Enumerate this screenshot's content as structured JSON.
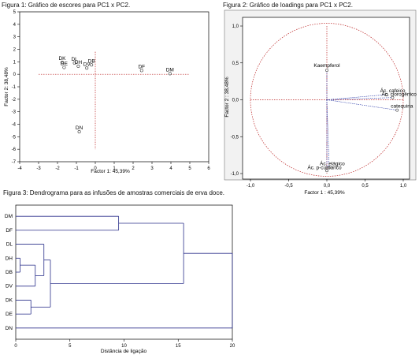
{
  "fig1": {
    "caption": "Figura 1: Gráfico de escores para PC1 x PC2.",
    "chart_data": {
      "type": "scatter",
      "xlabel": "Factor 1: 45,39%",
      "ylabel": "Factor 2: 38,48%",
      "xlim": [
        -4,
        6
      ],
      "ylim": [
        -7,
        5
      ],
      "xticks": [
        "-4",
        "-3",
        "-2",
        "-1",
        "0",
        "1",
        "2",
        "3",
        "4",
        "5",
        "6"
      ],
      "yticks": [
        "5",
        "4",
        "3",
        "2",
        "1",
        "0",
        "-1",
        "-2",
        "-3",
        "-4",
        "-5",
        "-6",
        "-7"
      ],
      "points": [
        {
          "label": "DK",
          "x": -1.75,
          "y": 0.95
        },
        {
          "label": "DE",
          "x": -1.65,
          "y": 0.55
        },
        {
          "label": "DL",
          "x": -1.1,
          "y": 0.9
        },
        {
          "label": "DH",
          "x": -0.9,
          "y": 0.65
        },
        {
          "label": "DV",
          "x": -0.45,
          "y": 0.5
        },
        {
          "label": "DB",
          "x": -0.2,
          "y": 0.75
        },
        {
          "label": "DF",
          "x": 2.45,
          "y": 0.3
        },
        {
          "label": "DM",
          "x": 3.95,
          "y": 0.05
        },
        {
          "label": "DN",
          "x": -0.85,
          "y": -4.6
        }
      ]
    }
  },
  "fig2": {
    "caption": "Figura 2: Gráfico de loadings para PC1 x PC2.",
    "chart_data": {
      "type": "scatter",
      "xlabel": "Factor 1 : 45,39%",
      "ylabel": "Factor 2 : 38,48%",
      "xlim": [
        -1.0,
        1.0
      ],
      "ylim": [
        -1.0,
        1.0
      ],
      "xticks": [
        "-1,0",
        "-0,5",
        "0,0",
        "0,5",
        "1,0"
      ],
      "yticks": [
        "1,0",
        "0,5",
        "0,0",
        "-0,5",
        "-1,0"
      ],
      "circle": true,
      "points": [
        {
          "label": "Kaempferol",
          "x": 0.0,
          "y": 0.4
        },
        {
          "label": "Ác. cafeico",
          "x": 0.78,
          "y": 0.07
        },
        {
          "label": "Ác. clorogênico",
          "x": 0.86,
          "y": 0.03
        },
        {
          "label": "catequina",
          "x": 0.92,
          "y": -0.14
        },
        {
          "label": "Ác. elágico",
          "x": 0.03,
          "y": -0.92
        },
        {
          "label": "Ác. p-cumárico",
          "x": 0.0,
          "y": -0.96
        }
      ]
    }
  },
  "fig3": {
    "caption": "Figura 3: Dendrograma para as infusões de amostras comerciais de erva doce.",
    "chart_data": {
      "type": "dendrogram",
      "xlabel": "Distância de ligação",
      "xlim": [
        0,
        20
      ],
      "xticks": [
        "0",
        "5",
        "10",
        "15",
        "20"
      ],
      "leaves": [
        "DM",
        "DF",
        "DL",
        "DH",
        "DB",
        "DV",
        "DK",
        "DE",
        "DN"
      ],
      "merges": [
        {
          "a": "DH",
          "b": "DB",
          "height": 0.4
        },
        {
          "a": "DK",
          "b": "DE",
          "height": 1.4
        },
        {
          "a": "DH+DB",
          "b": "DV",
          "height": 1.8
        },
        {
          "a": "DL",
          "b": "DH+DB+DV",
          "height": 2.6
        },
        {
          "a": "DL+DH+DB+DV",
          "b": "DK+DE",
          "height": 3.2
        },
        {
          "a": "DM",
          "b": "DF",
          "height": 9.5
        },
        {
          "a": "DM+DF",
          "b": "DL+DH+DB+DV+DK+DE",
          "height": 15.5
        },
        {
          "a": "all",
          "b": "DN",
          "height": 20.0
        }
      ]
    }
  }
}
